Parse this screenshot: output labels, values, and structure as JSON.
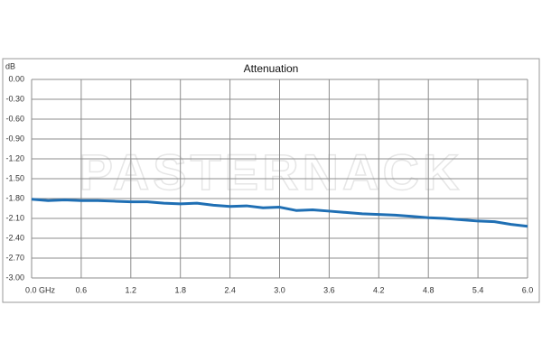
{
  "chart_data": {
    "type": "line",
    "title": "Attenuation",
    "y_label": "dB",
    "watermark": "PASTERNACK",
    "x": [
      0.0,
      0.2,
      0.4,
      0.6,
      0.8,
      1.0,
      1.2,
      1.4,
      1.6,
      1.8,
      2.0,
      2.2,
      2.4,
      2.6,
      2.8,
      3.0,
      3.2,
      3.4,
      3.6,
      3.8,
      4.0,
      4.2,
      4.4,
      4.6,
      4.8,
      5.0,
      5.2,
      5.4,
      5.6,
      5.8,
      6.0
    ],
    "series": [
      {
        "color": "#1f6fb4",
        "values": [
          -1.81,
          -1.83,
          -1.82,
          -1.83,
          -1.83,
          -1.84,
          -1.85,
          -1.85,
          -1.87,
          -1.88,
          -1.87,
          -1.9,
          -1.92,
          -1.91,
          -1.94,
          -1.93,
          -1.98,
          -1.97,
          -1.99,
          -2.01,
          -2.03,
          -2.04,
          -2.05,
          -2.07,
          -2.09,
          -2.1,
          -2.12,
          -2.14,
          -2.15,
          -2.19,
          -2.22
        ]
      }
    ],
    "xlim": [
      0,
      6
    ],
    "xticks": [
      {
        "value": 0,
        "label": "0.0  GHz"
      },
      0.6,
      1.2,
      1.8,
      2.4,
      {
        "value": 3,
        "label": "3.0"
      },
      3.6,
      4.2,
      4.8,
      5.4,
      {
        "value": 6,
        "label": "6.0"
      }
    ],
    "ylim": [
      -3,
      0
    ],
    "yticks": [
      {
        "value": 0,
        "label": "0.00"
      },
      {
        "value": -0.3,
        "label": "-0.30"
      },
      {
        "value": -0.6,
        "label": "-0.60"
      },
      {
        "value": -0.9,
        "label": "-0.90"
      },
      {
        "value": -1.2,
        "label": "-1.20"
      },
      {
        "value": -1.5,
        "label": "-1.50"
      },
      {
        "value": -1.8,
        "label": "-1.80"
      },
      {
        "value": -2.1,
        "label": "-2.10"
      },
      {
        "value": -2.4,
        "label": "-2.40"
      },
      {
        "value": -2.7,
        "label": "-2.70"
      },
      {
        "value": -3,
        "label": "-3.00"
      }
    ],
    "grid": true
  }
}
